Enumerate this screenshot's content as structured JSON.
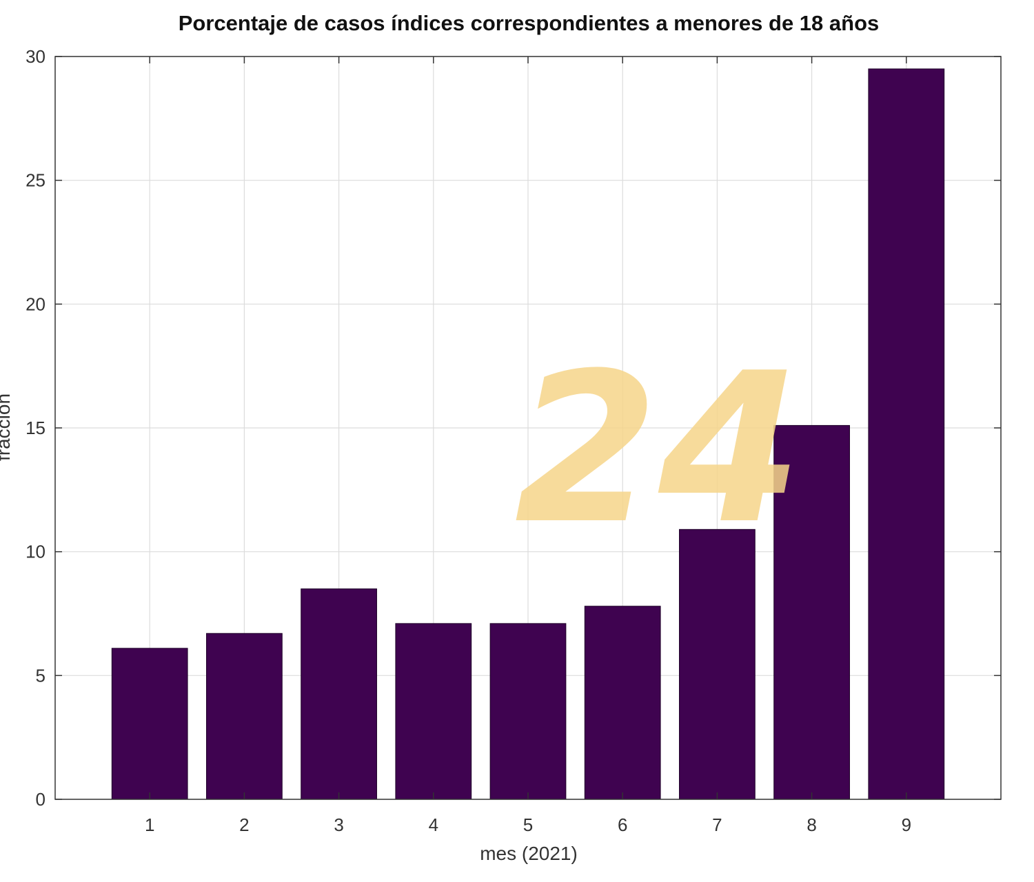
{
  "chart_data": {
    "type": "bar",
    "title": "Porcentaje de casos índices correspondientes a menores de 18 años",
    "xlabel": "mes (2021)",
    "ylabel": "fracción",
    "categories": [
      "1",
      "2",
      "3",
      "4",
      "5",
      "6",
      "7",
      "8",
      "9"
    ],
    "values": [
      6.1,
      6.7,
      8.5,
      7.1,
      7.1,
      7.8,
      10.9,
      15.1,
      29.5
    ],
    "ylim": [
      0,
      30
    ],
    "yticks": [
      0,
      5,
      10,
      15,
      20,
      25,
      30
    ],
    "grid": true,
    "bar_color": "#3f0350"
  },
  "watermark": "24"
}
